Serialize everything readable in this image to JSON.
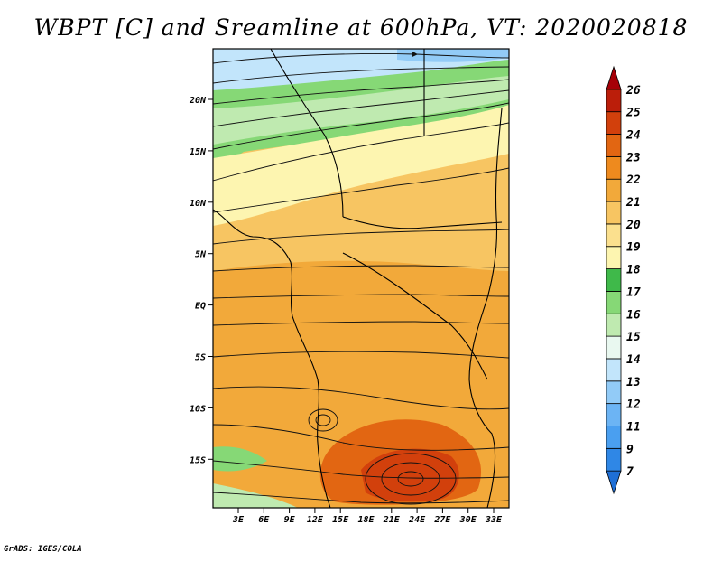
{
  "title": "WBPT [C] and Sreamline at 600hPa, VT: 2020020818",
  "credit": "GrADS: IGES/COLA",
  "map": {
    "variable": "WBPT",
    "units": "C",
    "level": "600hPa",
    "valid_time": "2020020818",
    "lat_labels": [
      "20N",
      "15N",
      "10N",
      "5N",
      "EQ",
      "5S",
      "10S",
      "15S"
    ],
    "lon_labels": [
      "3E",
      "6E",
      "9E",
      "12E",
      "15E",
      "18E",
      "21E",
      "24E",
      "27E",
      "30E",
      "33E"
    ]
  },
  "colorbar": {
    "labels": [
      "7",
      "9",
      "11",
      "12",
      "13",
      "14",
      "15",
      "16",
      "17",
      "18",
      "19",
      "20",
      "21",
      "22",
      "23",
      "24",
      "25",
      "26"
    ],
    "colors": [
      "#1e6fd6",
      "#2f87e6",
      "#4a9ff0",
      "#6cb4f4",
      "#92cbf7",
      "#c2e5fb",
      "#e9f8f0",
      "#bfeab0",
      "#86d876",
      "#3fb94a",
      "#fdf5b0",
      "#fbe08e",
      "#f7c562",
      "#f2a93a",
      "#ee8a1e",
      "#e26612",
      "#d2400c",
      "#bb1e0a",
      "#a60008"
    ]
  }
}
